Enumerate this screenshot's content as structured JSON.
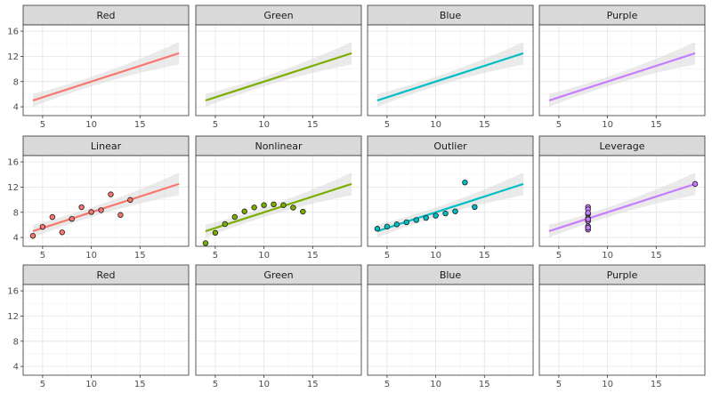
{
  "chart_data": {
    "type": "scatter",
    "title": "",
    "xlabel": "",
    "ylabel": "",
    "xlim": [
      3,
      20
    ],
    "ylim": [
      2.6,
      17
    ],
    "x_ticks": [
      5,
      10,
      15
    ],
    "y_ticks": [
      4,
      8,
      12,
      16
    ],
    "grid": true,
    "colors": {
      "Red": "#F8766D",
      "Green": "#7CAE00",
      "Blue": "#00BFC4",
      "Purple": "#C77CFF",
      "band": "#d9d9d9",
      "strip": "#d9d9d9"
    },
    "regression_fit": {
      "intercept": 3.0,
      "slope": 0.5,
      "x_range": [
        4,
        19
      ]
    },
    "rows": [
      [
        {
          "label": "Red",
          "color": "Red",
          "fit": true,
          "points": []
        },
        {
          "label": "Green",
          "color": "Green",
          "fit": true,
          "points": []
        },
        {
          "label": "Blue",
          "color": "Blue",
          "fit": true,
          "points": []
        },
        {
          "label": "Purple",
          "color": "Purple",
          "fit": true,
          "points": []
        }
      ],
      [
        {
          "label": "Linear",
          "color": "Red",
          "fit": true,
          "points": [
            [
              10,
              8.04
            ],
            [
              8,
              6.95
            ],
            [
              13,
              7.58
            ],
            [
              9,
              8.81
            ],
            [
              11,
              8.33
            ],
            [
              14,
              9.96
            ],
            [
              6,
              7.24
            ],
            [
              4,
              4.26
            ],
            [
              12,
              10.84
            ],
            [
              7,
              4.82
            ],
            [
              5,
              5.68
            ]
          ]
        },
        {
          "label": "Nonlinear",
          "color": "Green",
          "fit": true,
          "points": [
            [
              10,
              9.14
            ],
            [
              8,
              8.14
            ],
            [
              13,
              8.74
            ],
            [
              9,
              8.77
            ],
            [
              11,
              9.26
            ],
            [
              14,
              8.1
            ],
            [
              6,
              6.13
            ],
            [
              4,
              3.1
            ],
            [
              12,
              9.13
            ],
            [
              7,
              7.26
            ],
            [
              5,
              4.74
            ]
          ]
        },
        {
          "label": "Outlier",
          "color": "Blue",
          "fit": true,
          "points": [
            [
              10,
              7.46
            ],
            [
              8,
              6.77
            ],
            [
              13,
              12.74
            ],
            [
              9,
              7.11
            ],
            [
              11,
              7.81
            ],
            [
              14,
              8.84
            ],
            [
              6,
              6.08
            ],
            [
              4,
              5.39
            ],
            [
              12,
              8.15
            ],
            [
              7,
              6.42
            ],
            [
              5,
              5.73
            ]
          ]
        },
        {
          "label": "Leverage",
          "color": "Purple",
          "fit": true,
          "points": [
            [
              8,
              6.58
            ],
            [
              8,
              5.76
            ],
            [
              8,
              7.71
            ],
            [
              8,
              8.84
            ],
            [
              8,
              8.47
            ],
            [
              8,
              7.04
            ],
            [
              8,
              5.25
            ],
            [
              19,
              12.5
            ],
            [
              8,
              5.56
            ],
            [
              8,
              7.91
            ],
            [
              8,
              6.89
            ]
          ]
        }
      ],
      [
        {
          "label": "Red",
          "color": "Red",
          "fit": false,
          "points": []
        },
        {
          "label": "Green",
          "color": "Green",
          "fit": false,
          "points": []
        },
        {
          "label": "Blue",
          "color": "Blue",
          "fit": false,
          "points": []
        },
        {
          "label": "Purple",
          "color": "Purple",
          "fit": false,
          "points": []
        }
      ]
    ]
  }
}
